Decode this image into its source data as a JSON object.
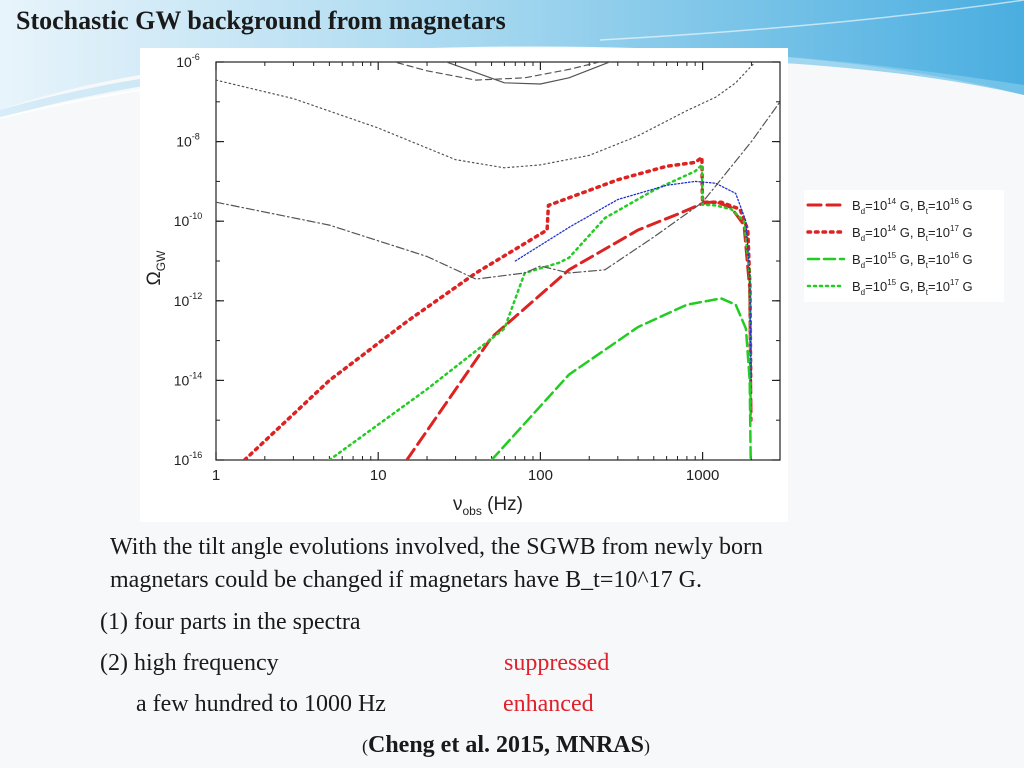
{
  "slide": {
    "title": "Stochastic GW background from magnetars",
    "paragraph_line1": "With the tilt angle evolutions involved, the SGWB from newly born",
    "paragraph_line2": "magnetars could be changed if magnetars have B_t=10^17 G.",
    "item1": "(1) four parts in the spectra",
    "item2_label": "(2) high frequency",
    "item2_value": "suppressed",
    "item3_label": "a few hundred to 1000 Hz",
    "item3_value": "enhanced",
    "citation_open": "(",
    "citation_text": "Cheng et al. 2015, MNRAS",
    "citation_close": ")"
  },
  "colors": {
    "accent_red": "#e0202a",
    "series_red": "#dd2222",
    "series_green": "#22cc22",
    "sensitivity_gray": "#555555",
    "sensitivity_blue": "#2233cc",
    "swoosh_blue": "#5fb8e0"
  },
  "chart_data": {
    "type": "line",
    "title": "",
    "xlabel": "ν",
    "xlabel_sub": "obs",
    "xlabel_unit": " (Hz)",
    "ylabel": "Ω",
    "ylabel_sub": "GW",
    "x_scale": "log",
    "y_scale": "log",
    "xlim": [
      1,
      3000
    ],
    "ylim": [
      1e-16,
      1e-06
    ],
    "grid": false,
    "legend_position": "right-outside",
    "x_ticks": [
      {
        "value": 1,
        "label": "1"
      },
      {
        "value": 10,
        "label": "10"
      },
      {
        "value": 100,
        "label": "100"
      },
      {
        "value": 1000,
        "label": "1000"
      }
    ],
    "y_ticks": [
      {
        "value": 1e-06,
        "base": "10",
        "exp": "-6"
      },
      {
        "value": 1e-08,
        "base": "10",
        "exp": "-8"
      },
      {
        "value": 1e-10,
        "base": "10",
        "exp": "-10"
      },
      {
        "value": 1e-12,
        "base": "10",
        "exp": "-12"
      },
      {
        "value": 1e-14,
        "base": "10",
        "exp": "-14"
      },
      {
        "value": 1e-16,
        "base": "10",
        "exp": "-16"
      }
    ],
    "legend": [
      {
        "color": "#dd2222",
        "dash": "13 6",
        "width": 3,
        "label_B": "B",
        "sub1": "d",
        "mid": "=10",
        "exp1": "14",
        "mid2": " G, B",
        "sub2": "t",
        "mid3": "=10",
        "exp2": "16",
        "tail": " G"
      },
      {
        "color": "#dd2222",
        "dash": "2.5 5",
        "width": 3.5,
        "label_B": "B",
        "sub1": "d",
        "mid": "=10",
        "exp1": "14",
        "mid2": " G, B",
        "sub2": "t",
        "mid3": "=10",
        "exp2": "17",
        "tail": " G"
      },
      {
        "color": "#22cc22",
        "dash": "11 5",
        "width": 2.5,
        "label_B": "B",
        "sub1": "d",
        "mid": "=10",
        "exp1": "15",
        "mid2": " G, B",
        "sub2": "t",
        "mid3": "=10",
        "exp2": "16",
        "tail": " G"
      },
      {
        "color": "#22cc22",
        "dash": "2 4",
        "width": 2.5,
        "label_B": "B",
        "sub1": "d",
        "mid": "=10",
        "exp1": "15",
        "mid2": " G, B",
        "sub2": "t",
        "mid3": "=10",
        "exp2": "17",
        "tail": " G"
      }
    ],
    "series": [
      {
        "color": "#dd2222",
        "dash": "13 6",
        "width": 3,
        "points": [
          [
            15,
            1e-16
          ],
          [
            50,
            1.2e-13
          ],
          [
            150,
            6e-12
          ],
          [
            400,
            6e-11
          ],
          [
            700,
            1.5e-10
          ],
          [
            1000,
            2.8e-10
          ],
          [
            1200,
            3.1e-10
          ],
          [
            1500,
            2.2e-10
          ],
          [
            1800,
            8e-11
          ],
          [
            1950,
            2e-12
          ],
          [
            1990,
            1e-15
          ]
        ]
      },
      {
        "color": "#dd2222",
        "dash": "2.5 5",
        "width": 3.5,
        "points": [
          [
            1.5,
            1e-16
          ],
          [
            5,
            1e-14
          ],
          [
            15,
            3e-13
          ],
          [
            40,
            5e-12
          ],
          [
            110,
            6e-11
          ],
          [
            112,
            2.5e-10
          ],
          [
            300,
            1.1e-09
          ],
          [
            600,
            2.4e-09
          ],
          [
            900,
            3e-09
          ],
          [
            990,
            4e-09
          ],
          [
            995,
            5e-10
          ],
          [
            1000,
            3e-10
          ],
          [
            1300,
            3e-10
          ],
          [
            1700,
            2e-10
          ],
          [
            1900,
            6e-11
          ],
          [
            1960,
            2e-12
          ],
          [
            1980,
            1e-14
          ]
        ]
      },
      {
        "color": "#22cc22",
        "dash": "11 5",
        "width": 2.5,
        "points": [
          [
            50,
            1e-16
          ],
          [
            150,
            1.4e-14
          ],
          [
            400,
            2.2e-13
          ],
          [
            800,
            8e-13
          ],
          [
            1300,
            1.15e-12
          ],
          [
            1600,
            8e-13
          ],
          [
            1850,
            2e-13
          ],
          [
            1950,
            1e-14
          ],
          [
            1980,
            1e-16
          ]
        ]
      },
      {
        "color": "#22cc22",
        "dash": "2 4",
        "width": 2.5,
        "points": [
          [
            5,
            1e-16
          ],
          [
            20,
            6e-15
          ],
          [
            60,
            2e-13
          ],
          [
            80,
            5e-12
          ],
          [
            130,
            9e-12
          ],
          [
            150,
            1.2e-11
          ],
          [
            250,
            1.2e-10
          ],
          [
            500,
            6e-10
          ],
          [
            900,
            1.8e-09
          ],
          [
            990,
            2.6e-09
          ],
          [
            1000,
            2.6e-10
          ],
          [
            1200,
            2.5e-10
          ],
          [
            1500,
            2e-10
          ],
          [
            1800,
            1e-10
          ],
          [
            1950,
            5e-12
          ],
          [
            1980,
            1e-15
          ]
        ]
      },
      {
        "color": "#2233cc",
        "dash": "1.5 2",
        "width": 1.3,
        "points": [
          [
            70,
            1e-11
          ],
          [
            150,
            7e-11
          ],
          [
            300,
            3.5e-10
          ],
          [
            600,
            8e-10
          ],
          [
            900,
            1e-09
          ],
          [
            1200,
            9e-10
          ],
          [
            1600,
            5e-10
          ],
          [
            1850,
            1e-10
          ],
          [
            1950,
            5e-12
          ],
          [
            1990,
            1e-14
          ]
        ]
      },
      {
        "color": "#555555",
        "dash": "",
        "width": 1.2,
        "points": [
          [
            20,
            1.5e-06
          ],
          [
            60,
            3e-07
          ],
          [
            100,
            2.8e-07
          ],
          [
            150,
            4e-07
          ],
          [
            300,
            1.2e-06
          ]
        ]
      },
      {
        "color": "#555555",
        "dash": "6 4",
        "width": 1.2,
        "points": [
          [
            10,
            1.3e-06
          ],
          [
            20,
            6e-07
          ],
          [
            40,
            3.5e-07
          ],
          [
            80,
            4e-07
          ],
          [
            150,
            6.5e-07
          ],
          [
            300,
            1.3e-06
          ]
        ]
      },
      {
        "color": "#555555",
        "dash": "1.5 3",
        "width": 1.2,
        "points": [
          [
            1,
            3.5e-07
          ],
          [
            3,
            1.2e-07
          ],
          [
            10,
            2.2e-08
          ],
          [
            30,
            3.5e-09
          ],
          [
            60,
            2.2e-09
          ],
          [
            100,
            2.6e-09
          ],
          [
            200,
            4.5e-09
          ],
          [
            400,
            1.4e-08
          ],
          [
            800,
            6e-08
          ],
          [
            1200,
            1.3e-07
          ],
          [
            1600,
            3e-07
          ],
          [
            2200,
            1.2e-06
          ]
        ]
      },
      {
        "color": "#555555",
        "dash": "8 3 1.5 3",
        "width": 1.2,
        "points": [
          [
            1,
            3e-10
          ],
          [
            5,
            8e-11
          ],
          [
            20,
            1.3e-11
          ],
          [
            40,
            3.5e-12
          ],
          [
            80,
            5e-12
          ],
          [
            100,
            7.5e-12
          ],
          [
            150,
            5e-12
          ],
          [
            250,
            6e-12
          ],
          [
            500,
            4e-11
          ],
          [
            1000,
            3e-10
          ],
          [
            2000,
            1e-08
          ],
          [
            3000,
            1e-07
          ]
        ]
      }
    ]
  }
}
